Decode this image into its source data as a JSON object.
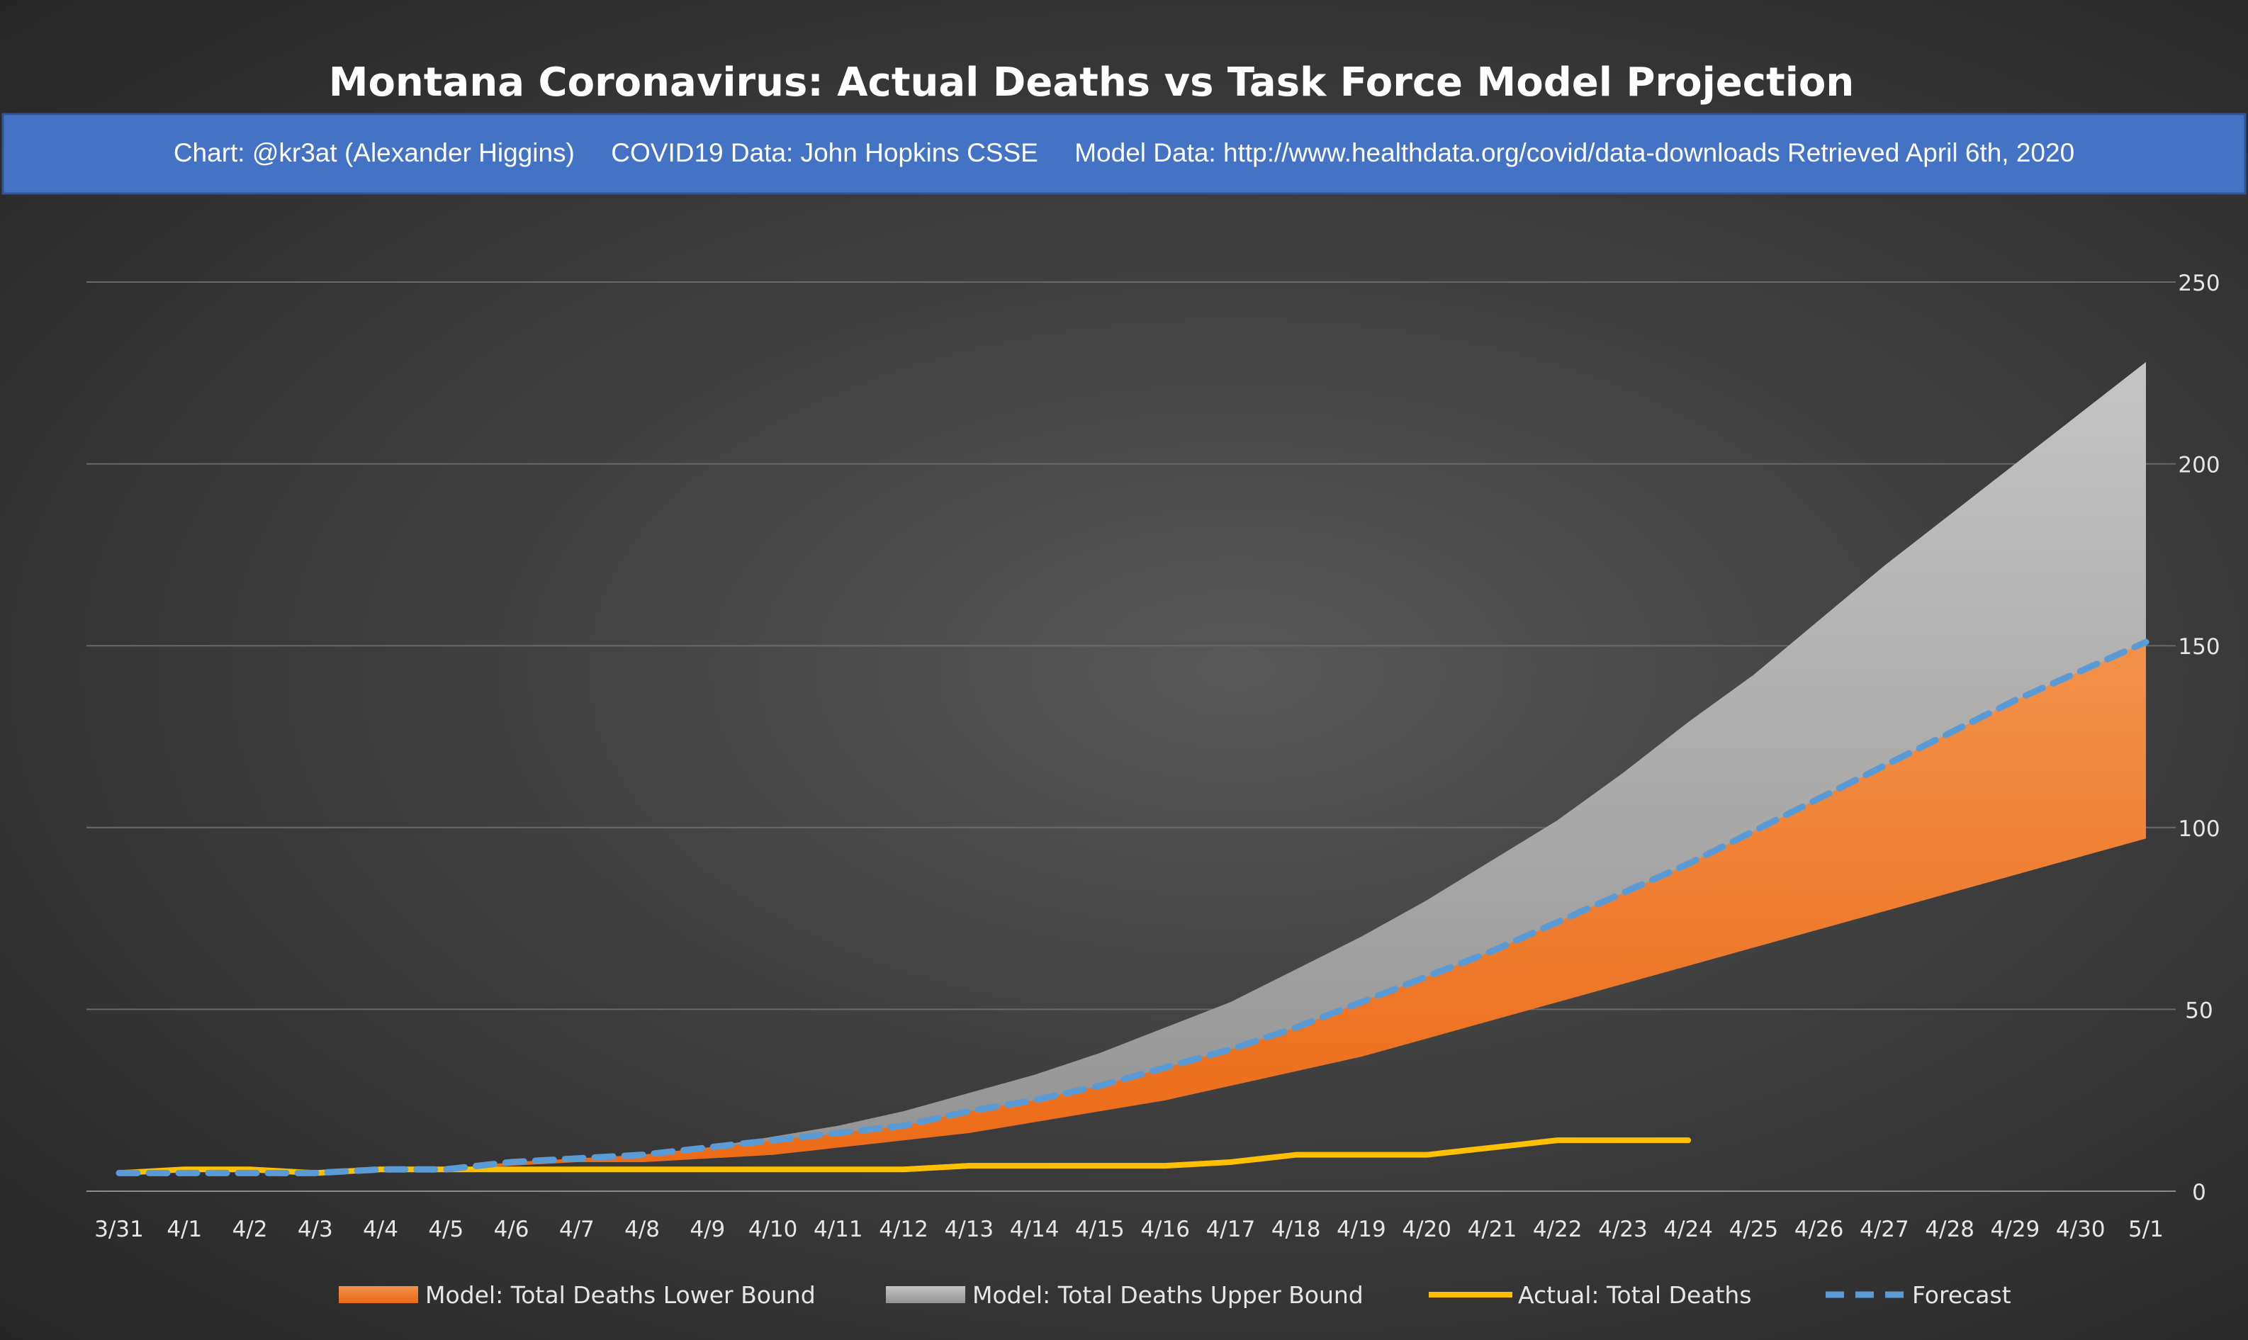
{
  "chart_data": {
    "type": "area",
    "title": "Montana Coronavirus: Actual Deaths vs Task Force Model Projection",
    "subtitle": "Chart: @kr3at (Alexander Higgins)     COVID19 Data: John Hopkins CSSE     Model Data: http://www.healthdata.org/covid/data-downloads Retrieved April 6th, 2020",
    "categories": [
      "3/31",
      "4/1",
      "4/2",
      "4/3",
      "4/4",
      "4/5",
      "4/6",
      "4/7",
      "4/8",
      "4/9",
      "4/10",
      "4/11",
      "4/12",
      "4/13",
      "4/14",
      "4/15",
      "4/16",
      "4/17",
      "4/18",
      "4/19",
      "4/20",
      "4/21",
      "4/22",
      "4/23",
      "4/24",
      "4/25",
      "4/26",
      "4/27",
      "4/28",
      "4/29",
      "4/30",
      "5/1"
    ],
    "ylim": [
      0,
      250
    ],
    "yticks": [
      0,
      50,
      100,
      150,
      200,
      250
    ],
    "y_axis_side": "right",
    "grid": true,
    "legend_position": "bottom",
    "series": [
      {
        "name": "Model: Total Deaths Lower Bound",
        "kind": "area",
        "color": "#f07b2c",
        "values": [
          5,
          5,
          5,
          5,
          6,
          6,
          7,
          8,
          8,
          9,
          10,
          12,
          14,
          16,
          19,
          22,
          25,
          29,
          33,
          37,
          42,
          47,
          52,
          57,
          62,
          67,
          72,
          77,
          82,
          87,
          92,
          97
        ]
      },
      {
        "name": "Model: Total Deaths Upper Bound",
        "kind": "area",
        "color": "#a8a8a8",
        "values": [
          5,
          5,
          5,
          5,
          6,
          6,
          7,
          8,
          10,
          12,
          15,
          18,
          22,
          27,
          32,
          38,
          45,
          52,
          61,
          70,
          80,
          91,
          102,
          115,
          129,
          142,
          157,
          172,
          186,
          200,
          214,
          228
        ]
      },
      {
        "name": "Actual: Total Deaths",
        "kind": "line",
        "color": "#ffc000",
        "values": [
          5,
          6,
          6,
          5,
          6,
          6,
          6,
          6,
          6,
          6,
          6,
          6,
          6,
          7,
          7,
          7,
          7,
          8,
          10,
          10,
          10,
          12,
          14,
          14,
          14,
          null,
          null,
          null,
          null,
          null,
          null,
          null
        ]
      },
      {
        "name": "Forecast",
        "kind": "dashed-line",
        "color": "#5b9bd5",
        "values": [
          5,
          5,
          5,
          5,
          6,
          6,
          8,
          9,
          10,
          12,
          14,
          16,
          18,
          22,
          25,
          29,
          34,
          39,
          45,
          52,
          59,
          66,
          74,
          82,
          90,
          99,
          108,
          117,
          126,
          135,
          143,
          151
        ]
      }
    ]
  }
}
